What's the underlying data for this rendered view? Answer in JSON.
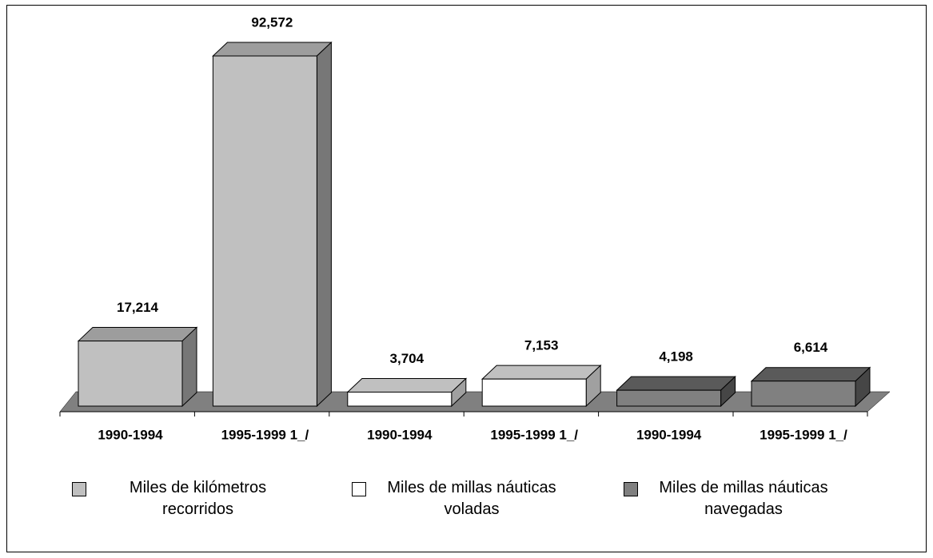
{
  "chart_data": {
    "type": "bar3d",
    "categories": [
      "1990-1994",
      "1995-1999 1_/",
      "1990-1994",
      "1995-1999 1_/",
      "1990-1994",
      "1995-1999 1_/"
    ],
    "series": [
      {
        "name": "Miles de kilómetros recorridos",
        "color": "#c0c0c0",
        "values": [
          17214,
          92572,
          null,
          null,
          null,
          null
        ],
        "value_labels": [
          "17,214",
          "92,572",
          null,
          null,
          null,
          null
        ]
      },
      {
        "name": "Miles de millas náuticas voladas",
        "color": "#ffffff",
        "values": [
          null,
          null,
          3704,
          7153,
          null,
          null
        ],
        "value_labels": [
          null,
          null,
          "3,704",
          "7,153",
          null,
          null
        ]
      },
      {
        "name": "Miles de millas náuticas navegadas",
        "color": "#808080",
        "values": [
          null,
          null,
          null,
          null,
          4198,
          6614
        ],
        "value_labels": [
          null,
          null,
          null,
          null,
          "4,198",
          "6,614"
        ]
      }
    ]
  }
}
